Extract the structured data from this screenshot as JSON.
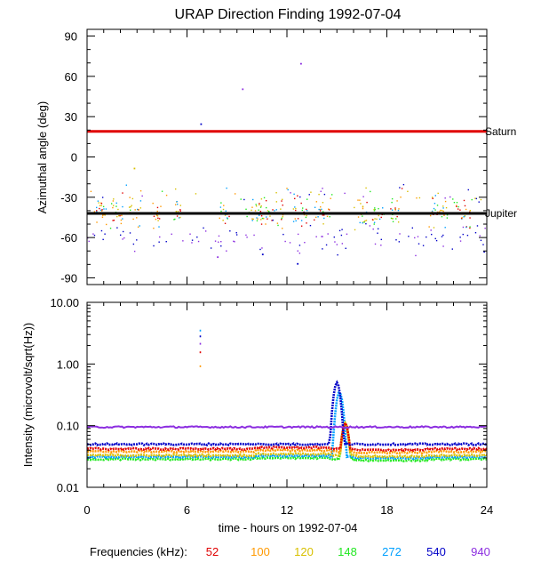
{
  "chart_data": [
    {
      "type": "scatter",
      "title": "URAP Direction Finding  1992-07-04",
      "ylabel": "Azimuthal angle (deg)",
      "xlim": [
        0,
        24
      ],
      "ylim": [
        -95,
        95
      ],
      "yticks": [
        90,
        60,
        30,
        0,
        -30,
        -60,
        -90
      ],
      "grid": false,
      "reference_lines": [
        {
          "name": "Saturn",
          "y": 19,
          "color": "#e00000"
        },
        {
          "name": "Jupiter",
          "y": -42,
          "color": "#000000"
        }
      ],
      "outliers": [
        {
          "x": 6.8,
          "y": 25,
          "color": "#0000c8"
        },
        {
          "x": 9.3,
          "y": 51,
          "color": "#8c2ee0"
        },
        {
          "x": 12.8,
          "y": 70,
          "color": "#8c2ee0"
        },
        {
          "x": 2.8,
          "y": -8,
          "color": "#d8c000"
        },
        {
          "x": 7.8,
          "y": -74,
          "color": "#8c2ee0"
        },
        {
          "x": 10.5,
          "y": -72,
          "color": "#0000c8"
        },
        {
          "x": 12.6,
          "y": -79,
          "color": "#0000c8"
        },
        {
          "x": 23.8,
          "y": -70,
          "color": "#0000c8"
        }
      ]
    },
    {
      "type": "scatter",
      "ylabel": "Intensity (microvolt/sqrt(Hz))",
      "xlabel": "time - hours on 1992-07-04",
      "xlim": [
        0,
        24
      ],
      "ylim": [
        0.01,
        10
      ],
      "yscale": "log",
      "xticks": [
        "0",
        "6",
        "12",
        "18",
        "24"
      ],
      "yticks": [
        "10.00",
        "1.00",
        "0.10",
        "0.01"
      ],
      "grid": false,
      "series": [
        {
          "name": "52",
          "color": "#e00000",
          "baseline": 0.042
        },
        {
          "name": "100",
          "color": "#ff9900",
          "baseline": 0.038
        },
        {
          "name": "120",
          "color": "#d8c000",
          "baseline": 0.033
        },
        {
          "name": "148",
          "color": "#22e822",
          "baseline": 0.0285
        },
        {
          "name": "272",
          "color": "#00a0ff",
          "baseline": 0.031
        },
        {
          "name": "540",
          "color": "#0000c8",
          "baseline": 0.05
        },
        {
          "name": "940",
          "color": "#8c2ee0",
          "baseline": 0.095
        }
      ],
      "events": [
        {
          "label": "peak",
          "x_range": [
            14.6,
            16.0
          ],
          "peak_x": 15.0,
          "peak_value": 0.5
        },
        {
          "label": "spike",
          "x": 6.8,
          "peak_value": 3.6
        }
      ]
    }
  ],
  "legend": {
    "label": "Frequencies (kHz):",
    "items": [
      {
        "value": "52",
        "color": "#e00000"
      },
      {
        "value": "100",
        "color": "#ff9900"
      },
      {
        "value": "120",
        "color": "#d8c000"
      },
      {
        "value": "148",
        "color": "#22e822"
      },
      {
        "value": "272",
        "color": "#00a0ff"
      },
      {
        "value": "540",
        "color": "#0000c8"
      },
      {
        "value": "940",
        "color": "#8c2ee0"
      }
    ]
  }
}
